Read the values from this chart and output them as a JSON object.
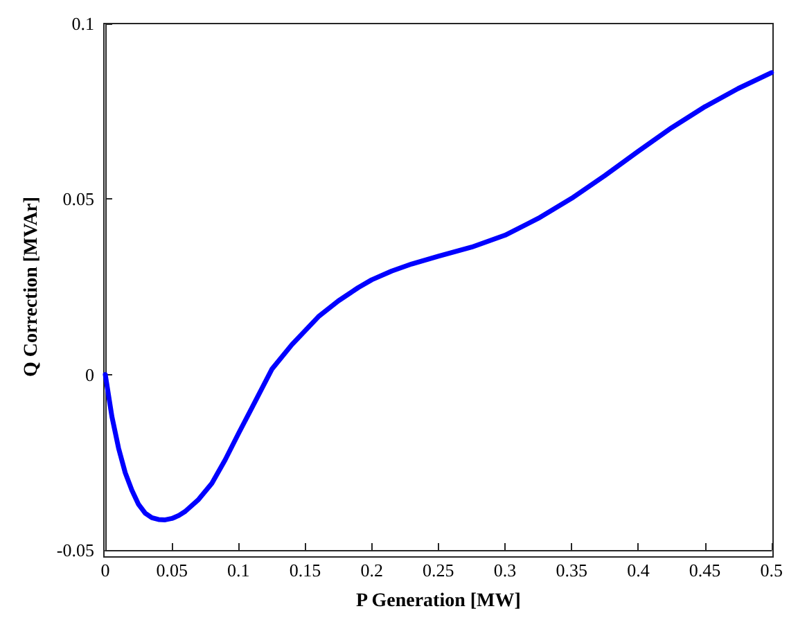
{
  "chart_data": {
    "type": "line",
    "xlabel": "P Generation [MW]",
    "ylabel": "Q Correction [MVAr]",
    "series": [
      {
        "color": "#0000ff",
        "x": [
          0,
          0.005,
          0.01,
          0.015,
          0.02,
          0.025,
          0.03,
          0.035,
          0.04,
          0.045,
          0.05,
          0.055,
          0.06,
          0.07,
          0.08,
          0.09,
          0.1,
          0.11,
          0.125,
          0.14,
          0.15,
          0.16,
          0.175,
          0.19,
          0.2,
          0.215,
          0.23,
          0.25,
          0.275,
          0.3,
          0.325,
          0.35,
          0.375,
          0.4,
          0.425,
          0.45,
          0.475,
          0.5
        ],
        "values": [
          0,
          -0.012,
          -0.021,
          -0.028,
          -0.033,
          -0.037,
          -0.0395,
          -0.0408,
          -0.0413,
          -0.0414,
          -0.041,
          -0.0402,
          -0.039,
          -0.0356,
          -0.031,
          -0.0243,
          -0.0168,
          -0.0095,
          0.0015,
          0.0085,
          0.0125,
          0.0165,
          0.021,
          0.0248,
          0.027,
          0.0295,
          0.0315,
          0.0337,
          0.0363,
          0.0397,
          0.0445,
          0.0502,
          0.0567,
          0.0636,
          0.0703,
          0.0763,
          0.0815,
          0.086
        ]
      }
    ],
    "xlim": [
      0,
      0.5
    ],
    "xticks": [
      0,
      0.05,
      0.1,
      0.15,
      0.2,
      0.25,
      0.3,
      0.35,
      0.4,
      0.45,
      0.5
    ],
    "ylim": [
      -0.05,
      0.1
    ],
    "yticks": [
      -0.05,
      0,
      0.05,
      0.1
    ],
    "grid": false,
    "marker": "none",
    "line_style": "solid"
  }
}
